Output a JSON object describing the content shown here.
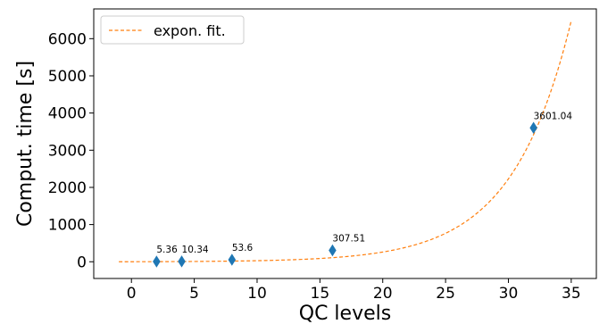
{
  "chart_data": {
    "type": "scatter",
    "xlabel": "QC levels",
    "ylabel": "Comput. time [s]",
    "xlim": [
      -3,
      37
    ],
    "ylim": [
      -450,
      6800
    ],
    "xticks": [
      0,
      5,
      10,
      15,
      20,
      25,
      30,
      35
    ],
    "yticks": [
      0,
      1000,
      2000,
      3000,
      4000,
      5000,
      6000
    ],
    "grid": false,
    "legend_position": "top-left",
    "series": [
      {
        "kind": "scatter",
        "marker": "diamond",
        "color": "#1f77b4",
        "x": [
          2,
          4,
          8,
          16,
          32
        ],
        "y": [
          5.36,
          10.34,
          53.6,
          307.51,
          3601.04
        ],
        "labels": [
          "5.36",
          "10.34",
          "53.6",
          "307.51",
          "3601.04"
        ]
      },
      {
        "kind": "line",
        "style": "dashed",
        "name": "expon. fit.",
        "color": "#ff7f0e",
        "function": "exponential",
        "x_range": [
          -1,
          35
        ],
        "y_start": 0,
        "y_end": 6480
      }
    ]
  }
}
